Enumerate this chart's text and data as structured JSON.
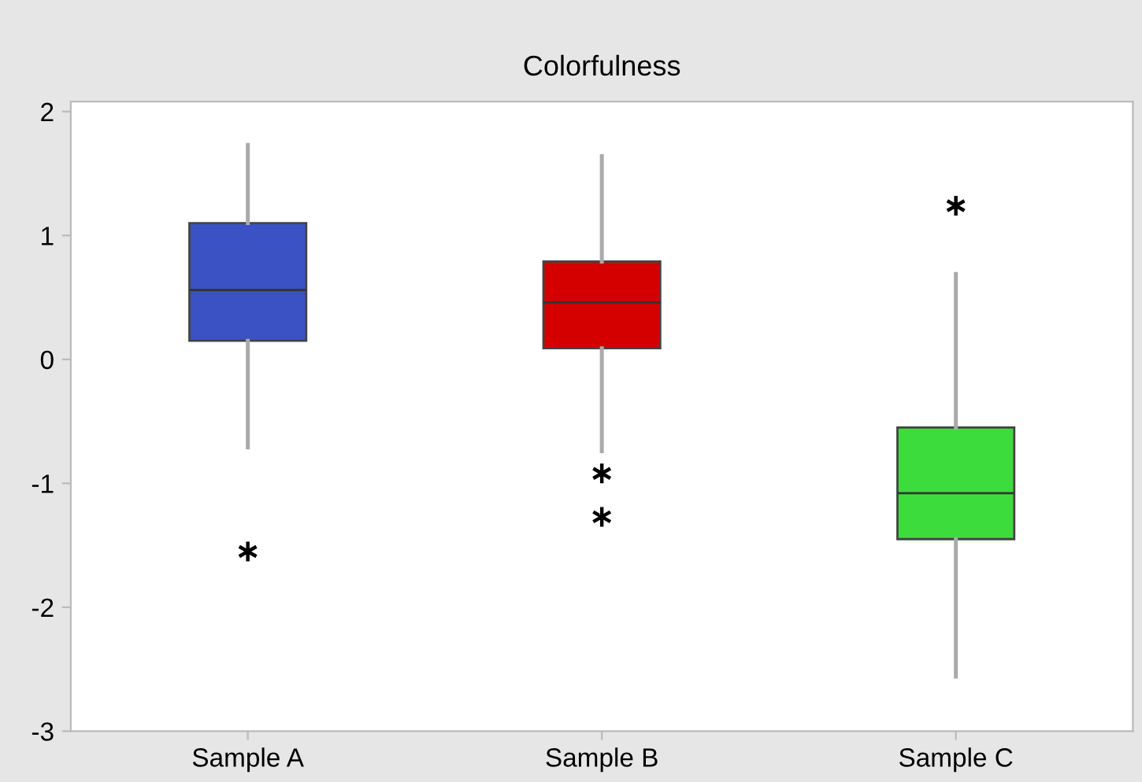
{
  "chart_data": {
    "type": "box",
    "title": "Colorfulness",
    "categories": [
      "Sample A",
      "Sample B",
      "Sample C"
    ],
    "series": [
      {
        "colors": [
          "#3a52c4",
          "#d40000",
          "#3ddc3d"
        ],
        "boxes": [
          {
            "low": -0.71,
            "q1": 0.15,
            "median": 0.56,
            "q3": 1.1,
            "high": 1.73,
            "outliers": [
              -1.55
            ]
          },
          {
            "low": -0.74,
            "q1": 0.09,
            "median": 0.46,
            "q3": 0.79,
            "high": 1.64,
            "outliers": [
              -0.92,
              -1.27
            ]
          },
          {
            "low": -2.56,
            "q1": -1.45,
            "median": -1.08,
            "q3": -0.55,
            "high": 0.69,
            "outliers": [
              1.24
            ]
          }
        ]
      }
    ],
    "ylim": [
      -3,
      2.08
    ],
    "yticks": [
      -3,
      -2,
      -1,
      0,
      1,
      2
    ],
    "grid": false
  }
}
